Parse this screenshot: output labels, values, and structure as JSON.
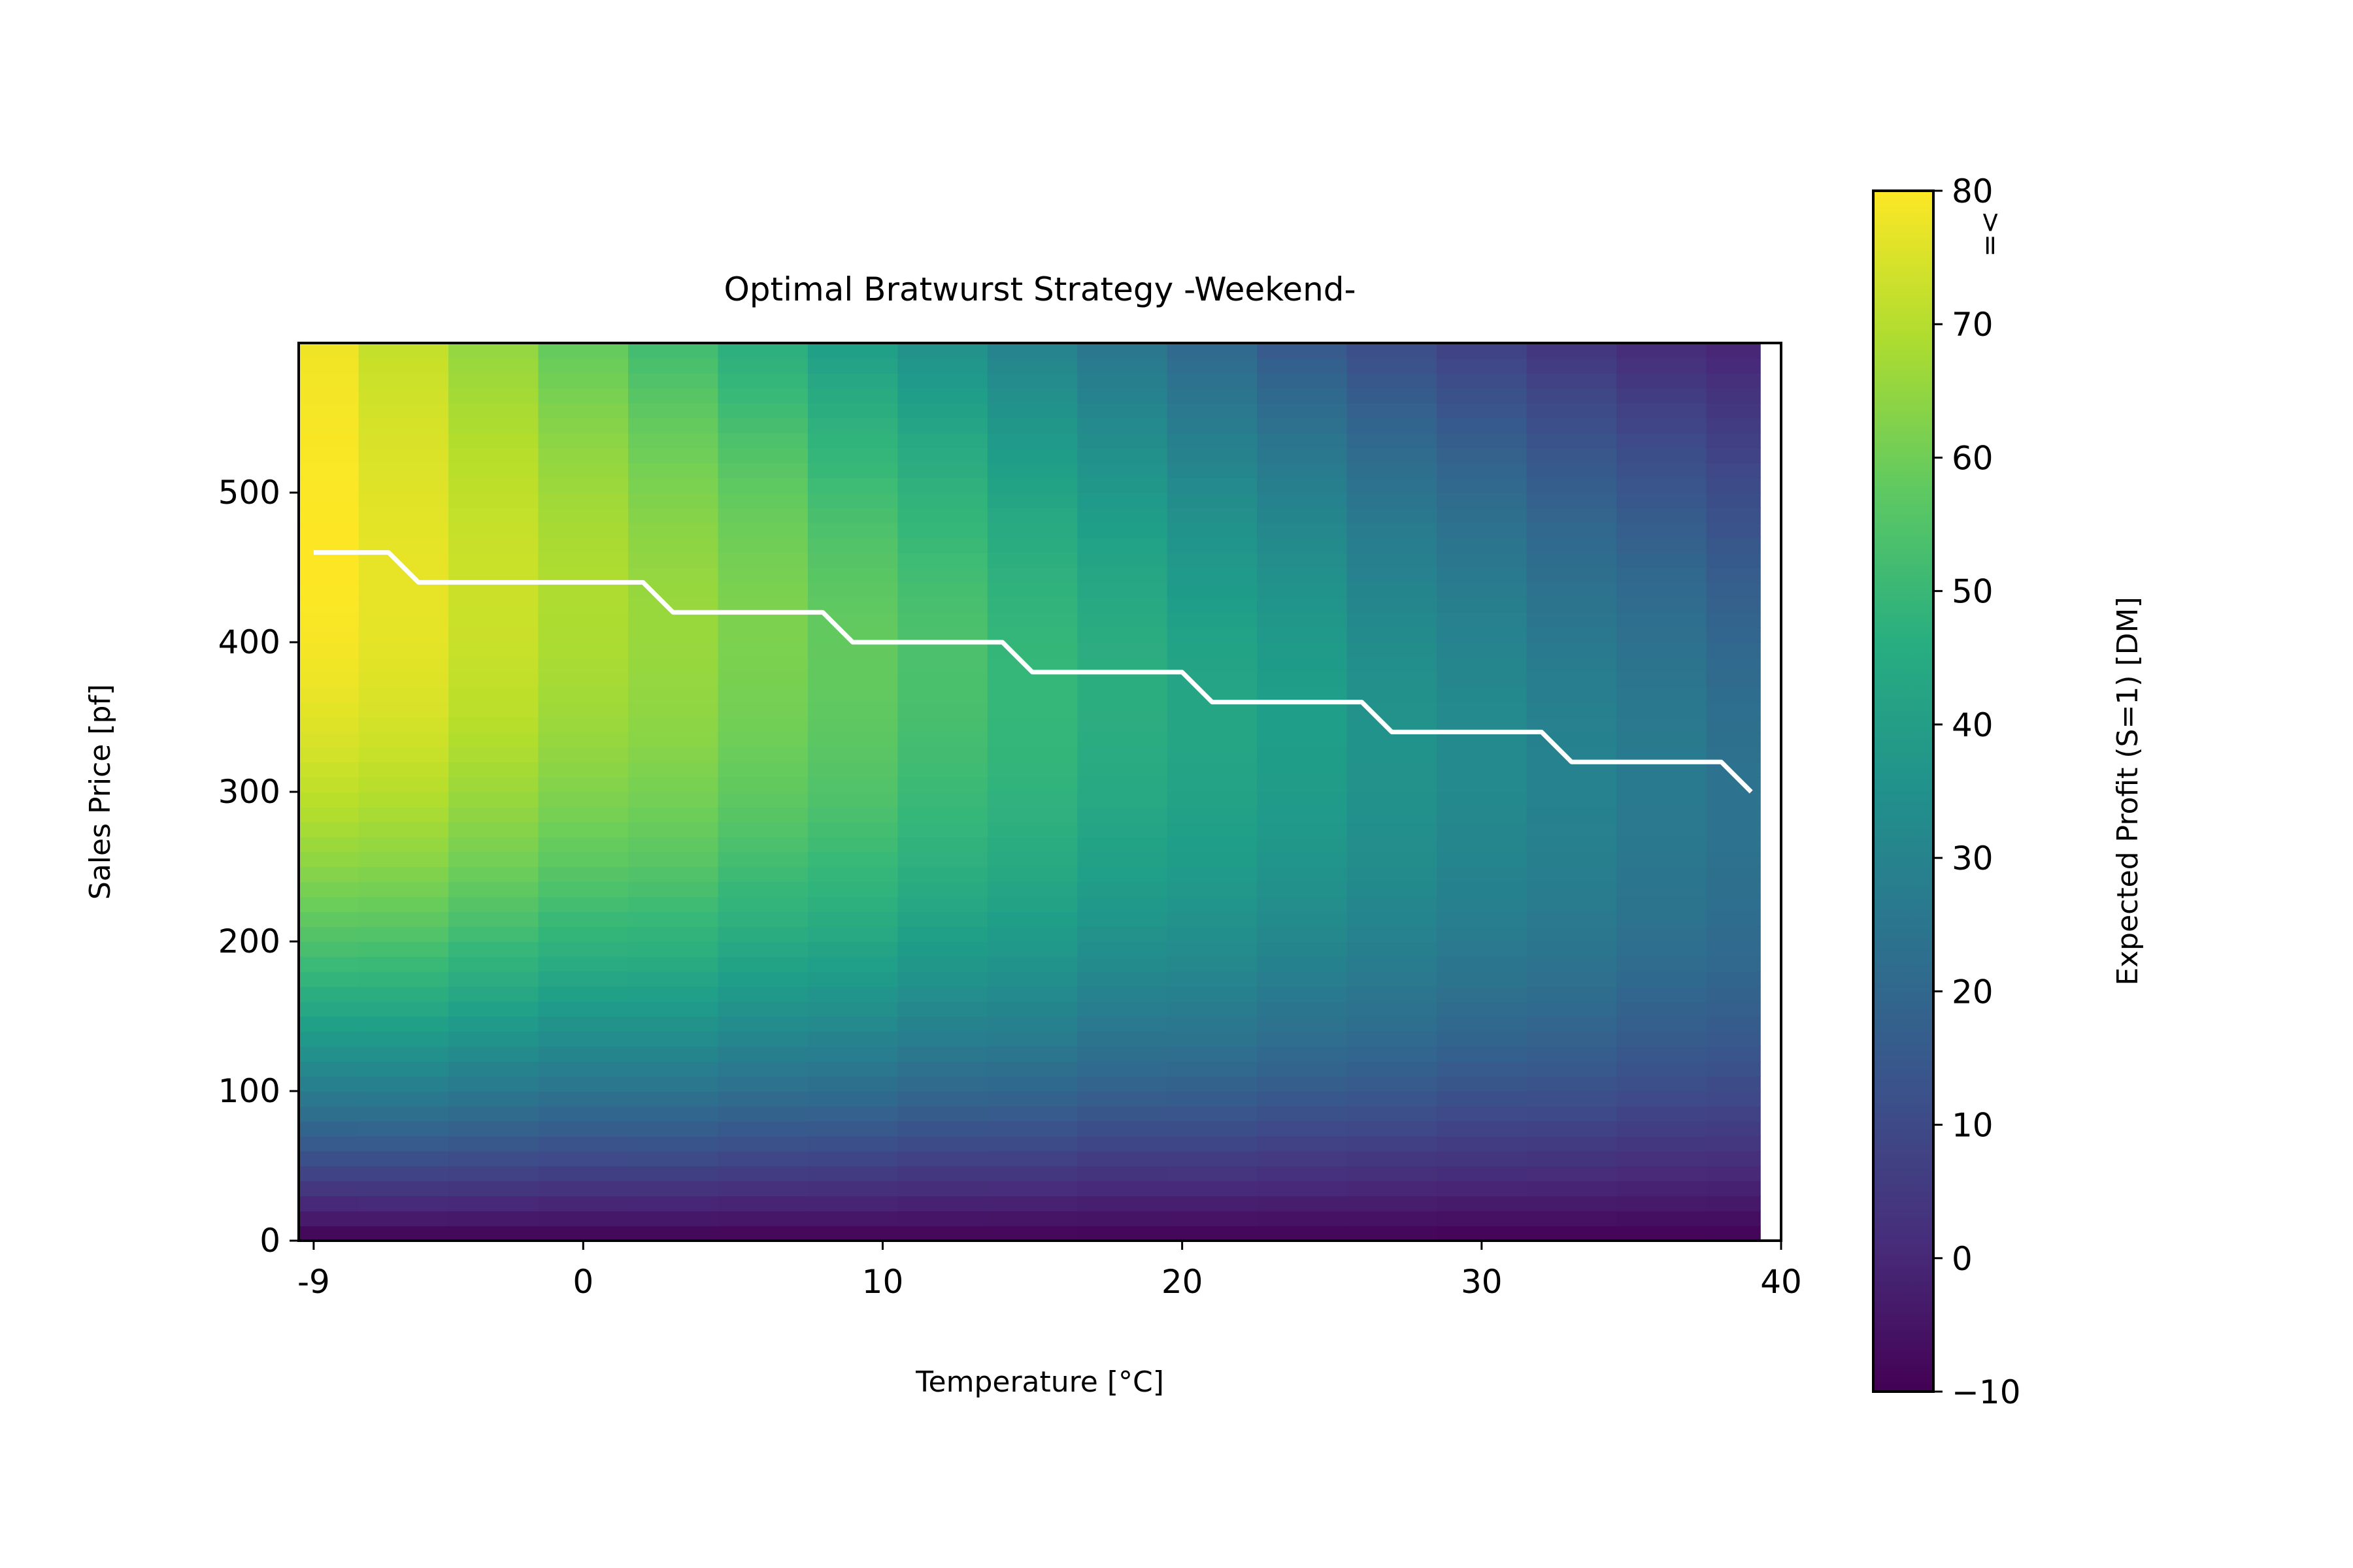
{
  "chart_data": {
    "type": "heatmap",
    "title": "Optimal Bratwurst Strategy -Weekend-",
    "xlabel": "Temperature [°C]",
    "ylabel": "Sales Price [pf]",
    "colorbar_label": "Expected Profit (S=1) [DM]",
    "colormap": "viridis",
    "x_ticks": [
      -9,
      0,
      10,
      20,
      30,
      40
    ],
    "x_tick_labels": [
      "-9",
      "0",
      "10",
      "20",
      "30",
      "40"
    ],
    "y_ticks": [
      0,
      100,
      200,
      300,
      400,
      500
    ],
    "y_tick_labels": [
      "0",
      "100",
      "200",
      "300",
      "400",
      "500"
    ],
    "colorbar_ticks": [
      -10,
      0,
      10,
      20,
      30,
      40,
      50,
      60,
      70,
      80
    ],
    "colorbar_tick_labels": [
      "−10",
      "0",
      "10",
      "20",
      "30",
      "40",
      "50",
      "60",
      "70",
      "80"
    ],
    "colorbar_top_marker": ">=",
    "xlim": [
      -9.5,
      40
    ],
    "ylim": [
      0,
      600
    ],
    "clim": [
      -10,
      80
    ],
    "temperatures": [
      -9,
      -6,
      -3,
      0,
      3,
      6,
      9,
      12,
      15,
      18,
      21,
      24,
      27,
      30,
      33,
      36,
      39
    ],
    "peak_price": [
      460,
      440,
      440,
      440,
      420,
      420,
      400,
      400,
      380,
      380,
      360,
      360,
      340,
      340,
      320,
      320,
      300
    ],
    "peak_profit": [
      80,
      77,
      73,
      69,
      66,
      62,
      58,
      54,
      50,
      46,
      43,
      40,
      36,
      33,
      30,
      27,
      24
    ],
    "high_price_profit_at_600": [
      78,
      72,
      65,
      58,
      52,
      46,
      40,
      35,
      30,
      25,
      20,
      15,
      11,
      7,
      4,
      1,
      -1
    ],
    "profit_at_zero_price": -10,
    "optimal_strategy": {
      "line_color": "#ffffff",
      "x": [
        -9,
        -6.5,
        -5.5,
        2,
        3,
        8,
        9,
        14,
        15,
        20,
        21,
        26,
        27,
        32,
        33,
        38,
        39
      ],
      "y": [
        460,
        460,
        440,
        440,
        420,
        420,
        400,
        400,
        380,
        380,
        360,
        360,
        340,
        340,
        320,
        320,
        300
      ]
    }
  }
}
